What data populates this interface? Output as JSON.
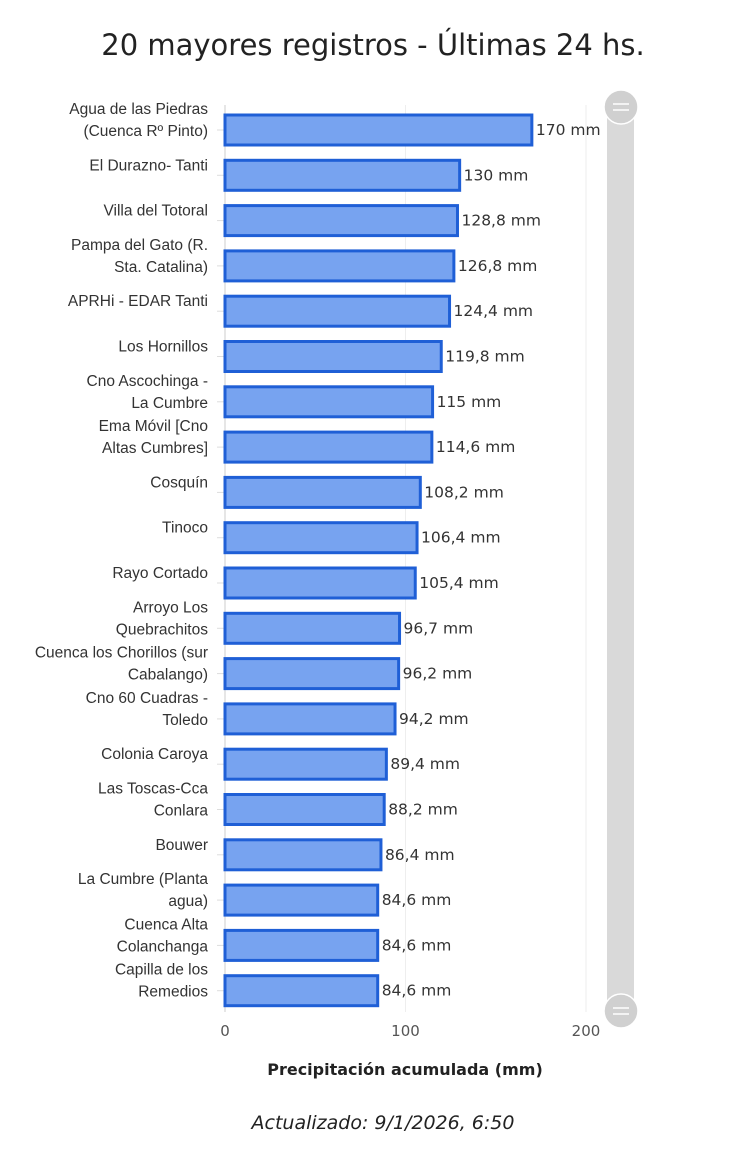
{
  "chart_data": {
    "type": "bar",
    "orientation": "horizontal",
    "title": "20 mayores registros - Últimas 24 hs.",
    "xlabel": "Precipitación acumulada (mm)",
    "ylabel": "",
    "xlim": [
      0,
      200
    ],
    "xticks": [
      "0",
      "100",
      "200"
    ],
    "grid": true,
    "bar_color": "#77A3F0",
    "bar_border_color": "#1F5FD6",
    "value_suffix": " mm",
    "categories": [
      [
        "Agua de las Piedras",
        "(Cuenca Rº Pinto)"
      ],
      [
        "El Durazno- Tanti"
      ],
      [
        "Villa del Totoral"
      ],
      [
        "Pampa del Gato (R.",
        "Sta. Catalina)"
      ],
      [
        "APRHi - EDAR Tanti"
      ],
      [
        "Los Hornillos"
      ],
      [
        "Cno Ascochinga -",
        "La Cumbre"
      ],
      [
        "Ema Móvil [Cno",
        "Altas Cumbres]"
      ],
      [
        "Cosquín"
      ],
      [
        "Tinoco"
      ],
      [
        "Rayo Cortado"
      ],
      [
        "Arroyo Los",
        "Quebrachitos"
      ],
      [
        "Cuenca los",
        "Chorillos (sur",
        "Cabalango)"
      ],
      [
        "Cno 60 Cuadras -",
        "Toledo"
      ],
      [
        "Colonia Caroya"
      ],
      [
        "Las Toscas-Cca",
        "Conlara"
      ],
      [
        "Bouwer"
      ],
      [
        "La Cumbre (Planta",
        "agua)"
      ],
      [
        "Cuenca Alta",
        "Colanchanga"
      ],
      [
        "Capilla de los",
        "Remedios"
      ]
    ],
    "values": [
      170,
      130,
      128.8,
      126.8,
      124.4,
      119.8,
      115,
      114.6,
      108.2,
      106.4,
      105.4,
      96.7,
      96.2,
      94.2,
      89.4,
      88.2,
      86.4,
      84.6,
      84.6,
      84.6
    ],
    "data_labels": [
      "170 mm",
      "130 mm",
      "128,8 mm",
      "126,8 mm",
      "124,4 mm",
      "119,8 mm",
      "115 mm",
      "114,6 mm",
      "108,2 mm",
      "106,4 mm",
      "105,4 mm",
      "96,7 mm",
      "96,2 mm",
      "94,2 mm",
      "89,4 mm",
      "88,2 mm",
      "86,4 mm",
      "84,6 mm",
      "84,6 mm",
      "84,6 mm"
    ]
  },
  "footer": "Actualizado: 9/1/2026, 6:50"
}
